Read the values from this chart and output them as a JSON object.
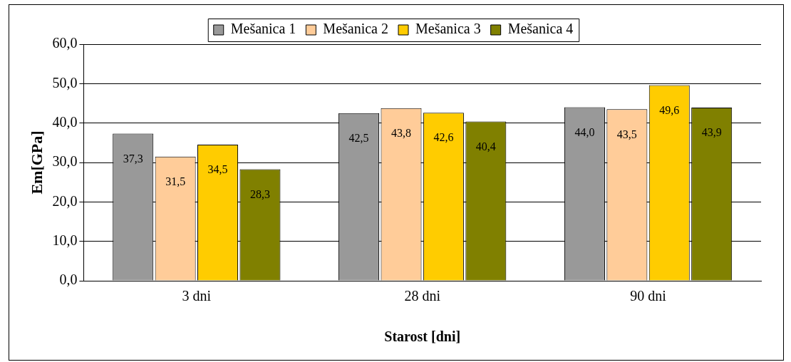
{
  "chart_data": {
    "type": "bar",
    "xlabel": "Starost [dni]",
    "ylabel": "Em[GPa]",
    "categories": [
      "3 dni",
      "28 dni",
      "90 dni"
    ],
    "series": [
      {
        "name": "Mešanica 1",
        "color": "#999999",
        "values": [
          37.3,
          42.5,
          44.0
        ],
        "value_labels": [
          "37,3",
          "42,5",
          "44,0"
        ]
      },
      {
        "name": "Mešanica 2",
        "color": "#ffcc99",
        "values": [
          31.5,
          43.8,
          43.5
        ],
        "value_labels": [
          "31,5",
          "43,8",
          "43,5"
        ]
      },
      {
        "name": "Mešanica 3",
        "color": "#ffcc00",
        "values": [
          34.5,
          42.6,
          49.6
        ],
        "value_labels": [
          "34,5",
          "42,6",
          "49,6"
        ]
      },
      {
        "name": "Mešanica 4",
        "color": "#808000",
        "values": [
          28.3,
          40.4,
          43.9
        ],
        "value_labels": [
          "28,3",
          "40,4",
          "43,9"
        ]
      }
    ],
    "ylim": [
      0,
      60
    ],
    "yticks": [
      {
        "value": 0,
        "label": "0,0"
      },
      {
        "value": 10,
        "label": "10,0"
      },
      {
        "value": 20,
        "label": "20,0"
      },
      {
        "value": 30,
        "label": "30,0"
      },
      {
        "value": 40,
        "label": "40,0"
      },
      {
        "value": 50,
        "label": "50,0"
      },
      {
        "value": 60,
        "label": "60,0"
      }
    ],
    "grid": "y",
    "legend": "top"
  }
}
